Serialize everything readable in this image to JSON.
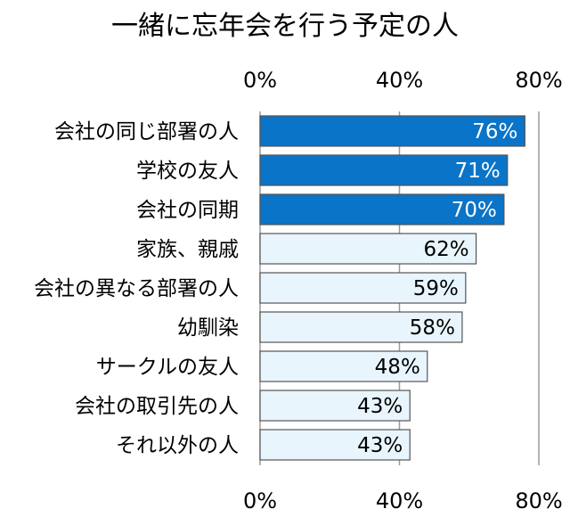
{
  "chart_data": {
    "type": "bar",
    "orientation": "horizontal",
    "title": "一緒に忘年会を行う予定の人",
    "categories": [
      "会社の同じ部署の人",
      "学校の友人",
      "会社の同期",
      "家族、親戚",
      "会社の異なる部署の人",
      "幼馴染",
      "サークルの友人",
      "会社の取引先の人",
      "それ以外の人"
    ],
    "values": [
      76,
      71,
      70,
      62,
      59,
      58,
      48,
      43,
      43
    ],
    "value_labels": [
      "76%",
      "71%",
      "70%",
      "62%",
      "59%",
      "58%",
      "48%",
      "43%",
      "43%"
    ],
    "highlighted_count": 3,
    "xlim": [
      0,
      80
    ],
    "xticks": [
      0,
      40,
      80
    ],
    "xtick_labels": [
      "0%",
      "40%",
      "80%"
    ],
    "tick_positions": [
      "top",
      "bottom"
    ],
    "grid": true,
    "colors": {
      "highlight_fill": "#0a74c8",
      "highlight_text": "#ffffff",
      "normal_fill": "#e8f5fd",
      "normal_text": "#000000",
      "bar_stroke": "#555555",
      "grid": "#9a9a9a"
    }
  }
}
